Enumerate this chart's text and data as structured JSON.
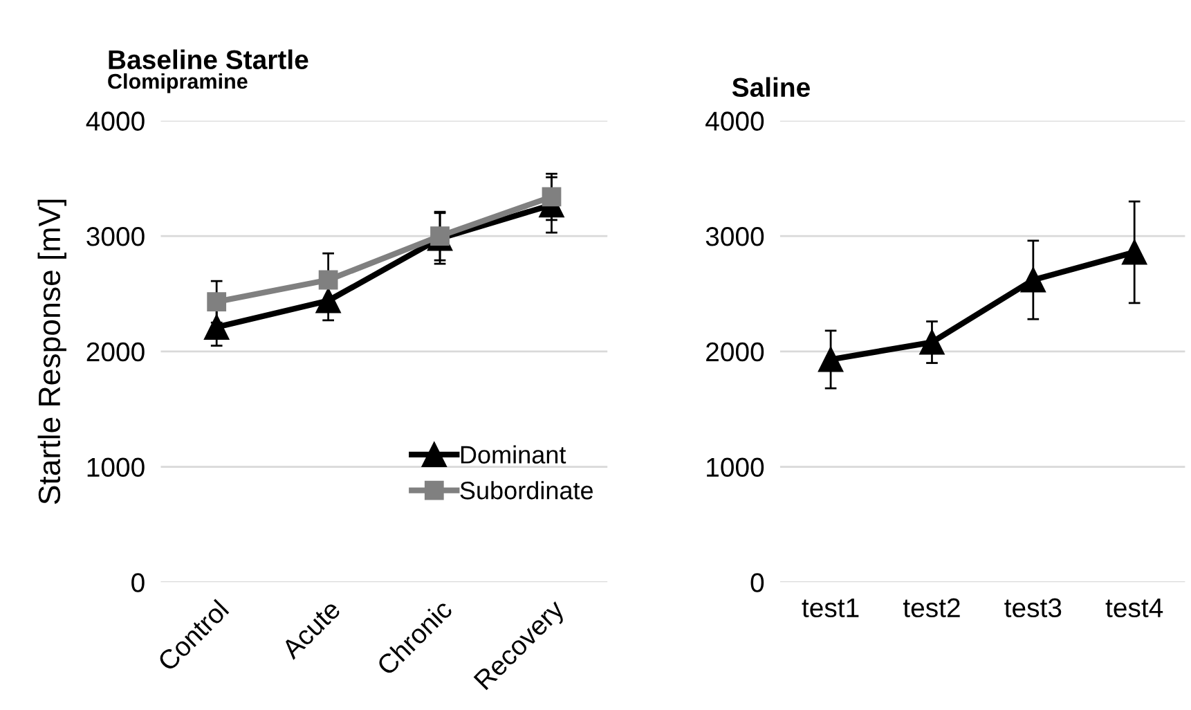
{
  "chart_data": [
    {
      "type": "line",
      "title": "Baseline Startle",
      "subtitle": "Clomipramine",
      "ylabel": "Startle Response [mV]",
      "categories": [
        "Control",
        "Acute",
        "Chronic",
        "Recovery"
      ],
      "ylim": [
        0,
        4000
      ],
      "yticks": [
        0,
        1000,
        2000,
        3000,
        4000
      ],
      "grid": "y",
      "legend": "bottom right",
      "marker": "triangle",
      "line_style": "solid",
      "series": [
        {
          "name": "Dominant",
          "color": "#000000",
          "marker": "triangle",
          "values": [
            2210,
            2440,
            2980,
            3270
          ],
          "errors": [
            160,
            170,
            220,
            240
          ]
        },
        {
          "name": "Subordinate",
          "color": "#808080",
          "marker": "square",
          "values": [
            2430,
            2620,
            3000,
            3340
          ],
          "errors": [
            180,
            230,
            210,
            200
          ]
        }
      ]
    },
    {
      "type": "line",
      "title": "Saline",
      "categories": [
        "test1",
        "test2",
        "test3",
        "test4"
      ],
      "ylim": [
        0,
        4000
      ],
      "yticks": [
        0,
        1000,
        2000,
        3000,
        4000
      ],
      "grid": "y",
      "marker": "triangle",
      "line_style": "solid",
      "series": [
        {
          "color": "#000000",
          "values": [
            1930,
            2080,
            2620,
            2860
          ],
          "errors": [
            250,
            180,
            340,
            440
          ]
        }
      ]
    }
  ]
}
